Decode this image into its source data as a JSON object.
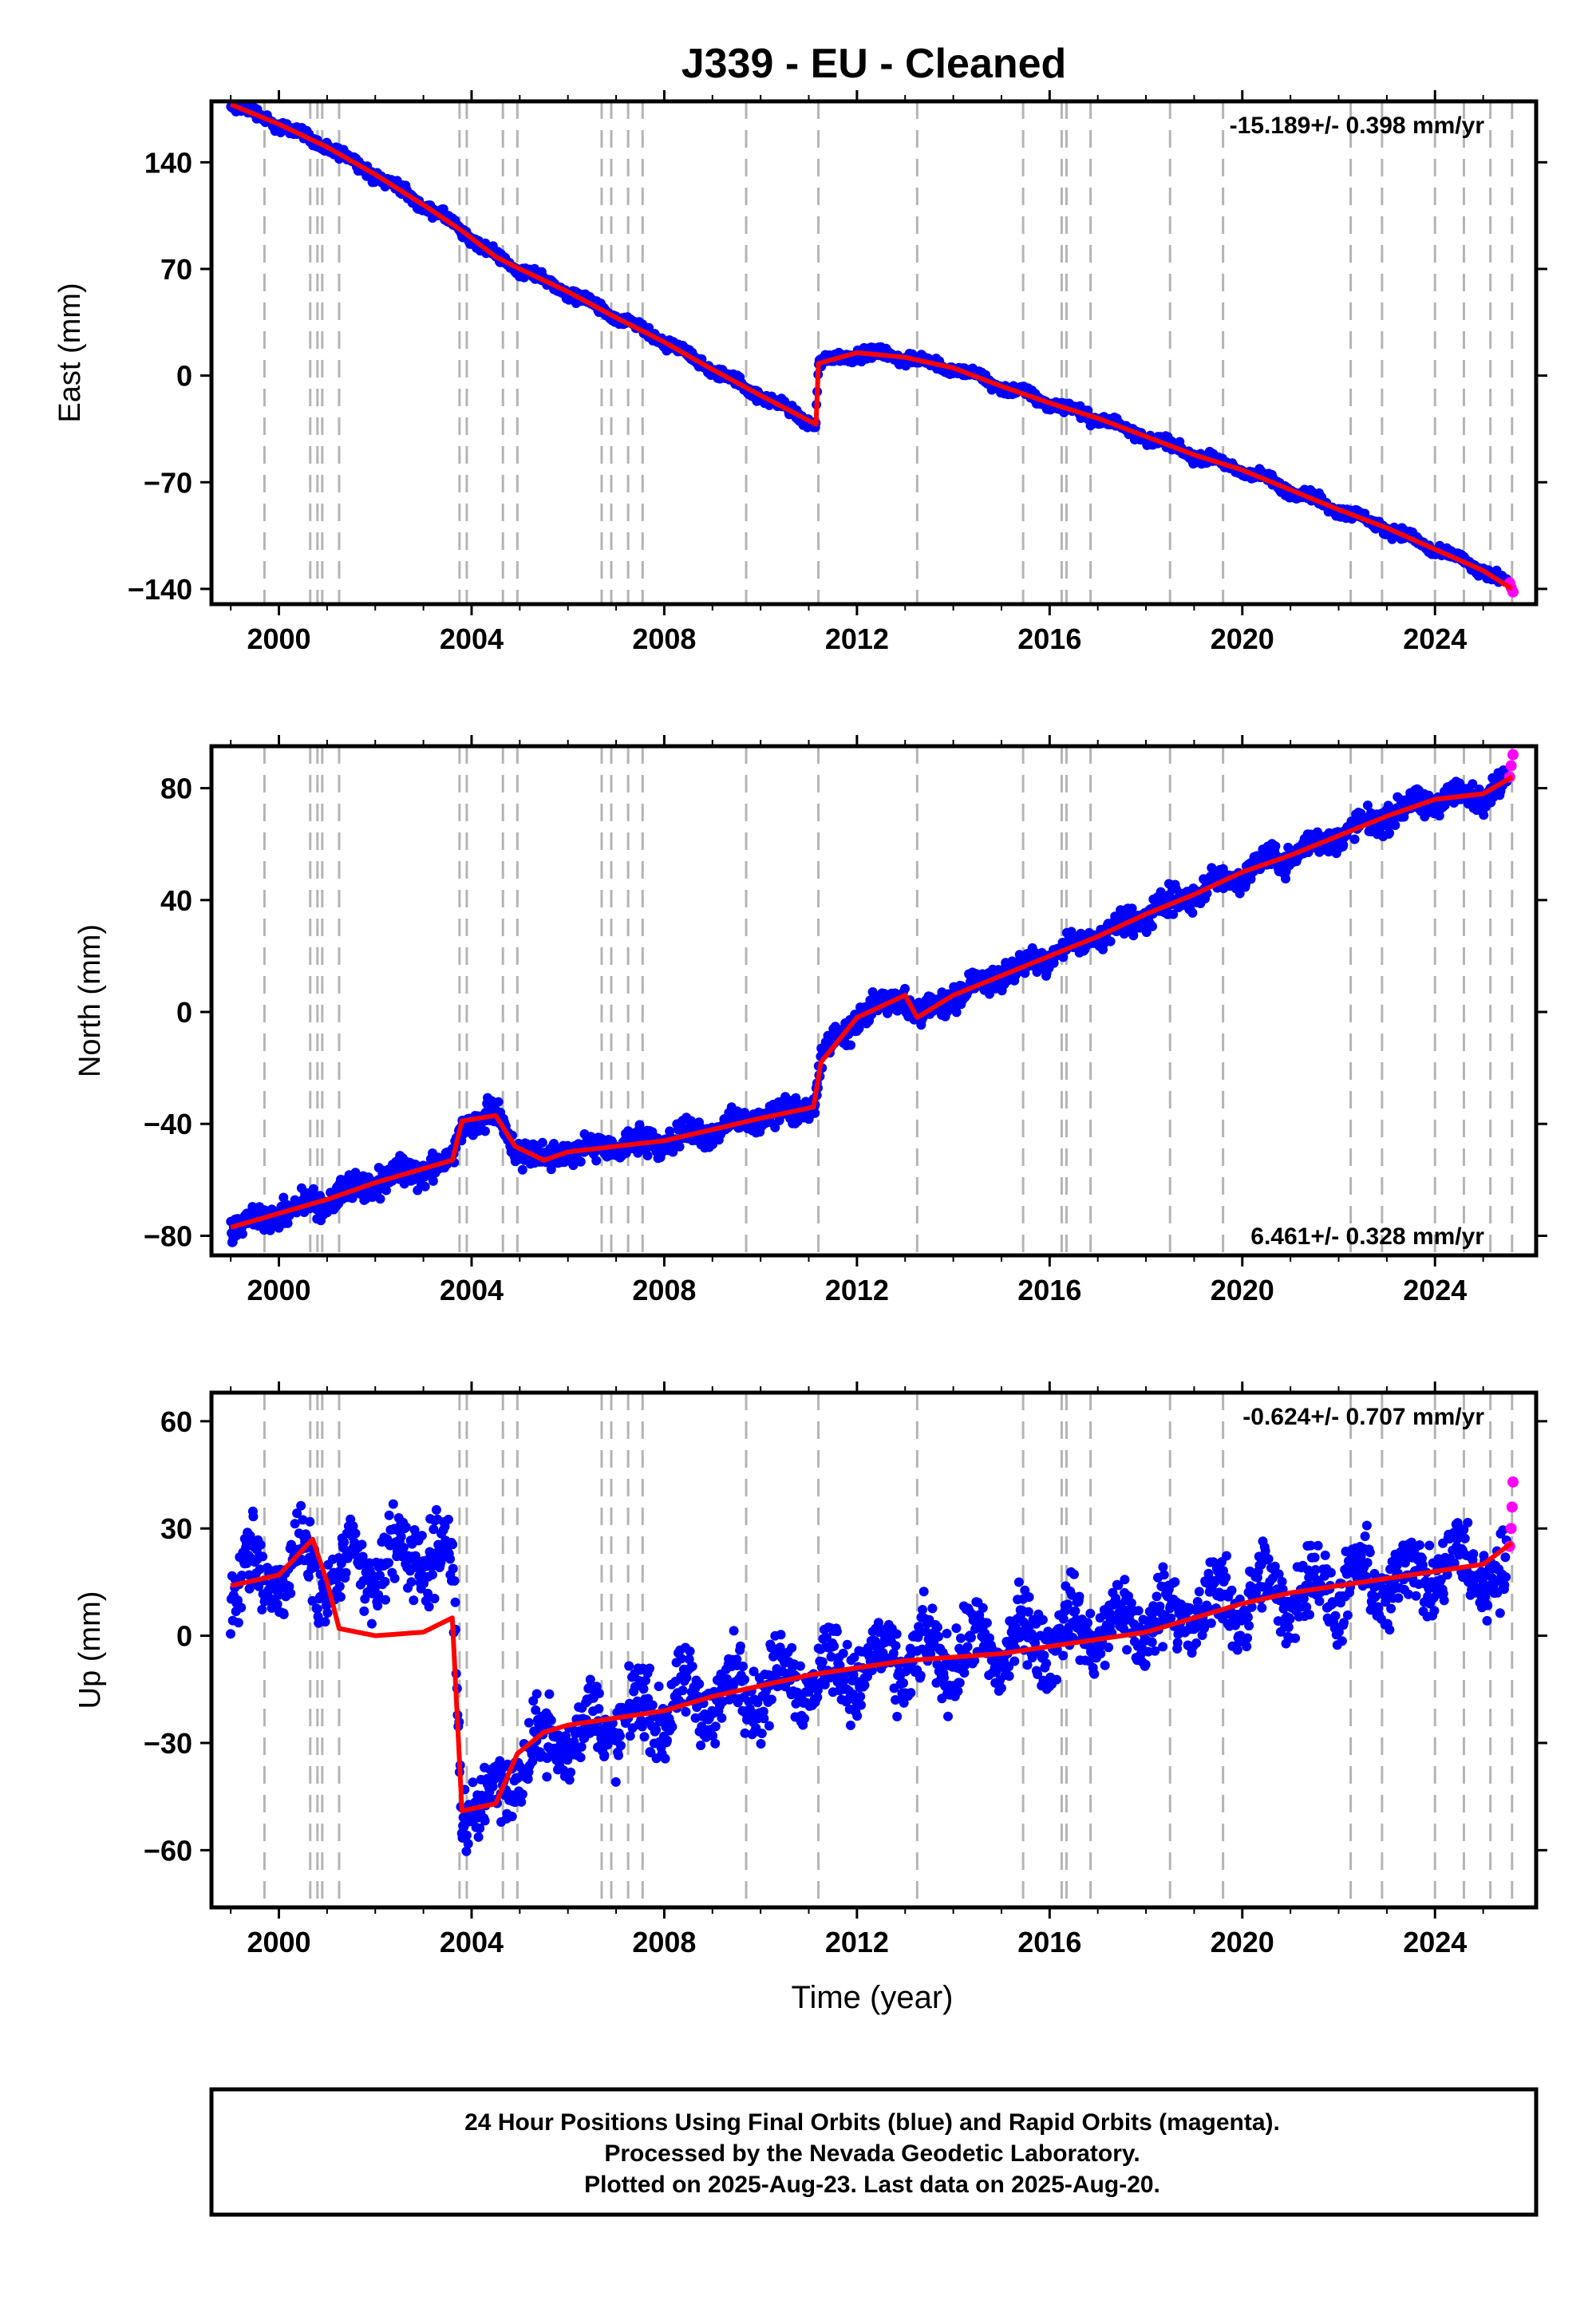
{
  "title": "J339  - EU - Cleaned",
  "xlabel": "Time (year)",
  "footer": {
    "line1": "24 Hour Positions Using Final Orbits (blue) and Rapid Orbits (magenta).",
    "line2": "Processed by the Nevada Geodetic Laboratory.",
    "line3": "Plotted on 2025-Aug-23. Last data on 2025-Aug-20."
  },
  "colors": {
    "final_orbits": "#0000ff",
    "rapid_orbits": "#ff00ff",
    "model": "#ff0000",
    "event_lines": "#b4b4b4"
  },
  "chart_data": [
    {
      "type": "scatter",
      "component": "east",
      "ylabel": "East (mm)",
      "rate_label": "-15.189+/- 0.398 mm/yr",
      "rate_position": "top-right",
      "xlim": [
        1998.6,
        2026.1
      ],
      "ylim": [
        -150,
        180
      ],
      "xticks": [
        2000,
        2004,
        2008,
        2012,
        2016,
        2020,
        2024
      ],
      "yticks": [
        140,
        70,
        0,
        -70,
        -140
      ],
      "event_lines_x": [
        1999.7,
        2000.65,
        2000.8,
        2000.9,
        2001.25,
        2003.75,
        2003.9,
        2004.65,
        2004.95,
        2006.7,
        2006.9,
        2007.25,
        2007.55,
        2009.7,
        2011.2,
        2013.25,
        2015.45,
        2016.25,
        2016.35,
        2016.85,
        2018.5,
        2019.6,
        2022.25,
        2022.9,
        2024.0,
        2024.6,
        2025.15,
        2025.6
      ],
      "series": [
        {
          "kind": "final_orbits",
          "x": [
            1999.0,
            2000.0,
            2001.0,
            2002.0,
            2003.0,
            2003.8,
            2004.5,
            2005.0,
            2006.0,
            2007.0,
            2008.0,
            2009.0,
            2010.0,
            2011.15,
            2011.2,
            2012.0,
            2013.0,
            2014.0,
            2015.0,
            2016.0,
            2017.0,
            2018.0,
            2019.0,
            2020.0,
            2021.0,
            2022.0,
            2023.0,
            2024.0,
            2025.0,
            2025.5
          ],
          "y": [
            178,
            165,
            150,
            132,
            112,
            95,
            78,
            70,
            55,
            38,
            22,
            4,
            -13,
            -32,
            8,
            15,
            12,
            5,
            -7,
            -18,
            -28,
            -40,
            -52,
            -62,
            -75,
            -88,
            -100,
            -114,
            -128,
            -136
          ]
        },
        {
          "kind": "rapid_orbits",
          "x": [
            2025.55,
            2025.58,
            2025.62
          ],
          "y": [
            -136,
            -139,
            -142
          ]
        },
        {
          "kind": "model",
          "x": [
            1999.0,
            2000.0,
            2001.0,
            2002.0,
            2003.0,
            2003.8,
            2004.5,
            2005.0,
            2006.0,
            2007.0,
            2008.0,
            2009.0,
            2010.0,
            2011.15,
            2011.2,
            2012.0,
            2013.0,
            2014.0,
            2015.0,
            2016.0,
            2017.0,
            2018.0,
            2019.0,
            2020.0,
            2021.0,
            2022.0,
            2023.0,
            2024.0,
            2025.0,
            2025.6
          ],
          "y": [
            178,
            165,
            150,
            132,
            112,
            95,
            78,
            70,
            55,
            38,
            22,
            4,
            -13,
            -32,
            8,
            15,
            12,
            5,
            -7,
            -18,
            -28,
            -40,
            -52,
            -62,
            -75,
            -88,
            -100,
            -114,
            -128,
            -140
          ]
        }
      ]
    },
    {
      "type": "scatter",
      "component": "north",
      "ylabel": "North (mm)",
      "rate_label": "6.461+/- 0.328 mm/yr",
      "rate_position": "bottom-right",
      "xlim": [
        1998.6,
        2026.1
      ],
      "ylim": [
        -87,
        95
      ],
      "xticks": [
        2000,
        2004,
        2008,
        2012,
        2016,
        2020,
        2024
      ],
      "yticks": [
        80,
        40,
        0,
        -40,
        -80
      ],
      "event_lines_x": [
        1999.7,
        2000.65,
        2000.8,
        2000.9,
        2001.25,
        2003.75,
        2003.9,
        2004.65,
        2004.95,
        2006.7,
        2006.9,
        2007.25,
        2007.55,
        2009.7,
        2011.2,
        2013.25,
        2015.45,
        2016.25,
        2016.35,
        2016.85,
        2018.5,
        2019.6,
        2022.25,
        2022.9,
        2024.0,
        2024.6,
        2025.15,
        2025.6
      ],
      "series": [
        {
          "kind": "final_orbits",
          "x": [
            1999.0,
            2000.0,
            2001.0,
            2002.0,
            2003.0,
            2003.6,
            2003.8,
            2004.5,
            2004.9,
            2005.5,
            2006.0,
            2007.0,
            2008.0,
            2009.0,
            2010.0,
            2011.1,
            2011.25,
            2012.0,
            2013.0,
            2013.25,
            2014.0,
            2015.0,
            2016.0,
            2017.0,
            2018.0,
            2019.0,
            2020.0,
            2021.0,
            2022.0,
            2023.0,
            2024.0,
            2025.0,
            2025.5
          ],
          "y": [
            -77,
            -72,
            -67,
            -61,
            -56,
            -53,
            -39,
            -37,
            -48,
            -53,
            -50,
            -48,
            -46,
            -42,
            -38,
            -34,
            -18,
            -2,
            6,
            -2,
            6,
            13,
            20,
            27,
            35,
            42,
            50,
            56,
            63,
            70,
            76,
            78,
            82
          ]
        },
        {
          "kind": "rapid_orbits",
          "x": [
            2025.55,
            2025.58,
            2025.62
          ],
          "y": [
            84,
            88,
            92
          ]
        },
        {
          "kind": "model",
          "x": [
            1999.0,
            2000.0,
            2001.0,
            2002.0,
            2003.0,
            2003.6,
            2003.8,
            2004.5,
            2004.9,
            2005.5,
            2006.0,
            2007.0,
            2008.0,
            2009.0,
            2010.0,
            2011.1,
            2011.25,
            2012.0,
            2013.0,
            2013.25,
            2014.0,
            2015.0,
            2016.0,
            2017.0,
            2018.0,
            2019.0,
            2020.0,
            2021.0,
            2022.0,
            2023.0,
            2024.0,
            2025.0,
            2025.6
          ],
          "y": [
            -77,
            -72,
            -67,
            -61,
            -56,
            -53,
            -39,
            -37,
            -48,
            -53,
            -50,
            -48,
            -46,
            -42,
            -38,
            -34,
            -18,
            -2,
            6,
            -2,
            6,
            13,
            20,
            27,
            35,
            42,
            50,
            56,
            63,
            70,
            76,
            78,
            84
          ]
        }
      ]
    },
    {
      "type": "scatter",
      "component": "up",
      "ylabel": "Up (mm)",
      "rate_label": "-0.624+/- 0.707 mm/yr",
      "rate_position": "top-right",
      "xlim": [
        1998.6,
        2026.1
      ],
      "ylim": [
        -76,
        68
      ],
      "xticks": [
        2000,
        2004,
        2008,
        2012,
        2016,
        2020,
        2024
      ],
      "yticks": [
        60,
        30,
        0,
        -30,
        -60
      ],
      "event_lines_x": [
        1999.7,
        2000.65,
        2000.8,
        2000.9,
        2001.25,
        2003.75,
        2003.9,
        2004.65,
        2004.95,
        2006.7,
        2006.9,
        2007.25,
        2007.55,
        2009.7,
        2011.2,
        2013.25,
        2015.45,
        2016.25,
        2016.35,
        2016.85,
        2018.5,
        2019.6,
        2022.25,
        2022.9,
        2024.0,
        2024.6,
        2025.15,
        2025.6
      ],
      "series": [
        {
          "kind": "final_orbits",
          "x": [
            1999.0,
            2000.0,
            2000.7,
            2001.0,
            2002.0,
            2003.0,
            2003.6,
            2003.8,
            2004.5,
            2005.0,
            2006.0,
            2007.0,
            2008.0,
            2009.0,
            2010.0,
            2011.0,
            2012.0,
            2013.0,
            2014.0,
            2015.0,
            2016.0,
            2017.0,
            2018.0,
            2019.0,
            2020.0,
            2021.0,
            2022.0,
            2023.0,
            2024.0,
            2025.0,
            2025.5
          ],
          "y": [
            15,
            17,
            22,
            16,
            20,
            24,
            18,
            -47,
            -46,
            -35,
            -28,
            -24,
            -20,
            -17,
            -14,
            -11,
            -9,
            -7,
            -5,
            -3,
            0,
            2,
            4,
            7,
            10,
            12,
            13,
            15,
            18,
            20,
            12
          ]
        },
        {
          "kind": "rapid_orbits",
          "x": [
            2025.55,
            2025.58,
            2025.6,
            2025.62
          ],
          "y": [
            25,
            30,
            36,
            43
          ]
        },
        {
          "kind": "model",
          "x": [
            1999.0,
            2000.0,
            2000.7,
            2001.0,
            2001.25,
            2002.0,
            2003.0,
            2003.6,
            2003.8,
            2004.5,
            2004.95,
            2005.5,
            2006.0,
            2007.0,
            2008.0,
            2009.0,
            2010.0,
            2011.0,
            2012.0,
            2013.0,
            2014.0,
            2015.0,
            2016.0,
            2017.0,
            2018.0,
            2019.0,
            2020.0,
            2021.0,
            2022.0,
            2023.0,
            2024.0,
            2025.0,
            2025.6
          ],
          "y": [
            14,
            17,
            27,
            15,
            2,
            0,
            1,
            5,
            -49,
            -47,
            -33,
            -27,
            -25,
            -23,
            -21,
            -17,
            -14,
            -11,
            -9,
            -7,
            -6,
            -5,
            -3,
            -1,
            1,
            5,
            9,
            12,
            14,
            16,
            18,
            20,
            26
          ]
        }
      ]
    }
  ]
}
